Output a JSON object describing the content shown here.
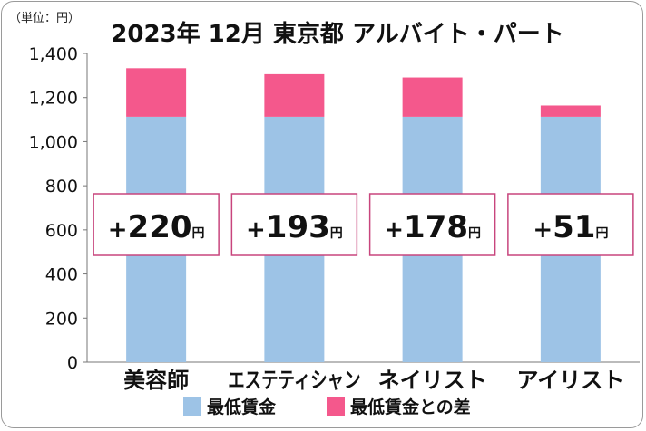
{
  "chart_data": {
    "type": "bar",
    "stacked": true,
    "title": "2023年 12月 東京都 アルバイト・パート",
    "unit_label": "（単位：円）",
    "categories": [
      "美容師",
      "エステティシャン",
      "ネイリスト",
      "アイリスト"
    ],
    "series": [
      {
        "name": "最低賃金",
        "values": [
          1113,
          1113,
          1113,
          1113
        ],
        "color": "#9dc3e6"
      },
      {
        "name": "最低賃金との差",
        "values": [
          220,
          193,
          178,
          51
        ],
        "color": "#f4588c"
      }
    ],
    "annotations": [
      {
        "sign": "+",
        "number": "220",
        "unit": "円"
      },
      {
        "sign": "+",
        "number": "193",
        "unit": "円"
      },
      {
        "sign": "+",
        "number": "178",
        "unit": "円"
      },
      {
        "sign": "+",
        "number": "51",
        "unit": "円"
      }
    ],
    "yticks": [
      "0",
      "200",
      "400",
      "600",
      "800",
      "1,000",
      "1,200",
      "1,400"
    ],
    "ylim": [
      0,
      1400
    ],
    "grid": false,
    "legend_position": "bottom",
    "annotation_border_color": "#c8457d"
  }
}
